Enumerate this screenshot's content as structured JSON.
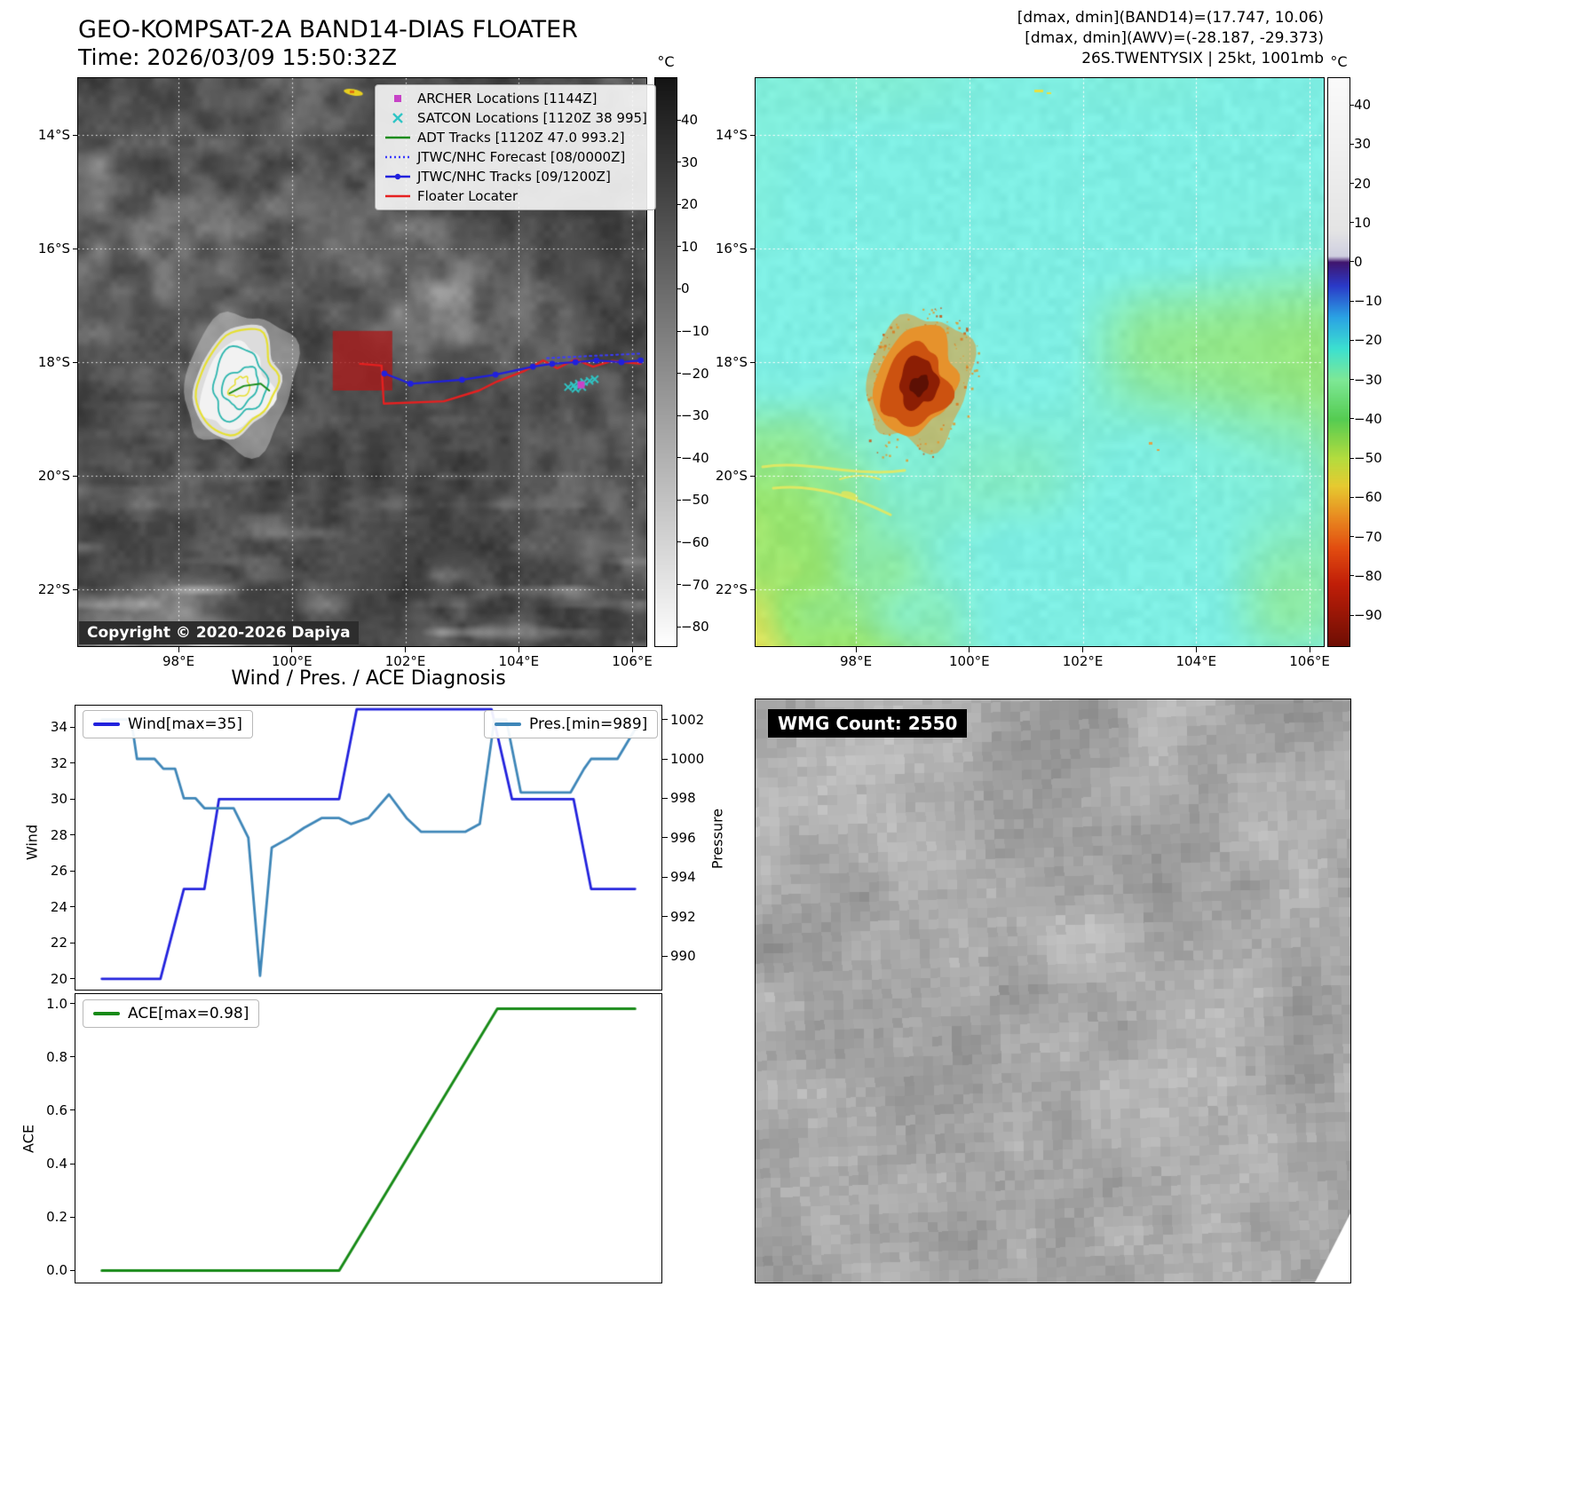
{
  "header_right": {
    "line1": "[dmax, dmin](BAND14)=(17.747, 10.06)",
    "line2": "[dmax, dmin](AWV)=(-28.187, -29.373)",
    "line3": "26S.TWENTYSIX | 25kt, 1001mb"
  },
  "geo": {
    "lon_range": [
      96.23,
      106.25
    ],
    "lat_range": [
      13,
      23
    ],
    "lat_ticks": [
      {
        "label": "14°S",
        "value": 14
      },
      {
        "label": "16°S",
        "value": 16
      },
      {
        "label": "18°S",
        "value": 18
      },
      {
        "label": "20°S",
        "value": 20
      },
      {
        "label": "22°S",
        "value": 22
      }
    ],
    "lon_ticks": [
      {
        "label": "98°E",
        "value": 98
      },
      {
        "label": "100°E",
        "value": 100
      },
      {
        "label": "102°E",
        "value": 102
      },
      {
        "label": "104°E",
        "value": 104
      },
      {
        "label": "106°E",
        "value": 106
      }
    ]
  },
  "ir_panel": {
    "title": "GEO-KOMPSAT-2A BAND14-DIAS FLOATER",
    "time_label": "Time: 2026/03/09 15:50:32Z",
    "copyright": "Copyright © 2020-2026 Dapiya",
    "colorbar": {
      "unit": "°C",
      "ticks": [
        40,
        30,
        20,
        10,
        0,
        -10,
        -20,
        -30,
        -40,
        -50,
        -60,
        -70,
        -80
      ]
    },
    "legend": [
      {
        "label": "ARCHER Locations [1144Z]",
        "marker": "square",
        "color": "#c743c7"
      },
      {
        "label": "SATCON Locations [1120Z 38 995]",
        "marker": "x",
        "color": "#2fc5c5"
      },
      {
        "label": "ADT Tracks [1120Z 47.0 993.2]",
        "marker": "line",
        "color": "#1a8c1a"
      },
      {
        "label": "JTWC/NHC Forecast [08/0000Z]",
        "marker": "dotted",
        "color": "#3b3bff"
      },
      {
        "label": "JTWC/NHC Tracks [09/1200Z]",
        "marker": "line-dot",
        "color": "#2020dd"
      },
      {
        "label": "Floater Locater",
        "marker": "line",
        "color": "#e62020"
      }
    ],
    "map": {
      "storm_center": [
        99.08,
        18.42
      ],
      "alert_box": {
        "lon": [
          100.72,
          101.77
        ],
        "lat": [
          17.45,
          18.5
        ],
        "color": "rgba(167,28,28,0.80)"
      },
      "floater_track": [
        [
          101.2,
          18.03
        ],
        [
          101.58,
          18.06
        ],
        [
          101.62,
          18.73
        ],
        [
          102.68,
          18.69
        ],
        [
          103.3,
          18.5
        ],
        [
          103.62,
          18.34
        ],
        [
          104.09,
          18.16
        ],
        [
          104.43,
          17.97
        ],
        [
          104.68,
          18.11
        ],
        [
          105.0,
          17.95
        ],
        [
          105.31,
          18.08
        ],
        [
          105.65,
          17.98
        ],
        [
          106.15,
          18.03
        ]
      ],
      "jtwc_track": [
        [
          101.63,
          18.2
        ],
        [
          102.09,
          18.38
        ],
        [
          103.0,
          18.31
        ],
        [
          103.59,
          18.22
        ],
        [
          104.25,
          18.08
        ],
        [
          104.59,
          18.03
        ],
        [
          105.0,
          18.0
        ],
        [
          105.37,
          17.97
        ],
        [
          105.81,
          18.0
        ],
        [
          106.15,
          17.97
        ]
      ],
      "forecast_track": [
        [
          104.5,
          17.93
        ],
        [
          105.3,
          17.89
        ],
        [
          106.15,
          17.85
        ]
      ],
      "adt_track": [
        [
          98.9,
          18.55
        ],
        [
          99.15,
          18.42
        ],
        [
          99.45,
          18.38
        ],
        [
          99.6,
          18.5
        ]
      ],
      "satcon_points": [
        [
          104.87,
          18.44
        ],
        [
          104.97,
          18.41
        ],
        [
          105.06,
          18.38
        ],
        [
          105.15,
          18.35
        ],
        [
          105.25,
          18.33
        ],
        [
          105.0,
          18.47
        ],
        [
          105.12,
          18.44
        ],
        [
          105.34,
          18.3
        ]
      ],
      "archer_point": [
        105.1,
        18.4
      ]
    }
  },
  "awv_panel": {
    "colorbar": {
      "unit": "°C",
      "ticks": [
        40,
        30,
        20,
        10,
        0,
        -10,
        -20,
        -30,
        -40,
        -50,
        -60,
        -70,
        -80,
        -90
      ]
    },
    "storm_center": [
      99.11,
      18.4
    ]
  },
  "diagnosis": {
    "title": "Wind / Pres. / ACE Diagnosis"
  },
  "chart_data": [
    {
      "type": "line",
      "panel": "wind-pressure",
      "title": "Wind / Pres. / ACE Diagnosis",
      "x_range": [
        0,
        1
      ],
      "left_axis": {
        "label": "Wind",
        "ticks": [
          20,
          22,
          24,
          26,
          28,
          30,
          32,
          34
        ],
        "lim": [
          19.4,
          35.2
        ]
      },
      "right_axis": {
        "label": "Pressure",
        "ticks": [
          990,
          992,
          994,
          996,
          998,
          1000,
          1002
        ],
        "lim": [
          988.3,
          1002.7
        ]
      },
      "series": [
        {
          "name": "Wind[max=35]",
          "axis": "left",
          "color": "#2222dd",
          "points": [
            [
              0.045,
              20
            ],
            [
              0.145,
              20
            ],
            [
              0.185,
              25
            ],
            [
              0.22,
              25
            ],
            [
              0.245,
              30
            ],
            [
              0.45,
              30
            ],
            [
              0.48,
              35
            ],
            [
              0.71,
              35
            ],
            [
              0.745,
              30
            ],
            [
              0.85,
              30
            ],
            [
              0.88,
              25
            ],
            [
              0.955,
              25
            ]
          ]
        },
        {
          "name": "Pres.[min=989]",
          "axis": "right",
          "color": "#3e86b8",
          "points": [
            [
              0.045,
              1002
            ],
            [
              0.095,
              1002
            ],
            [
              0.105,
              1000
            ],
            [
              0.135,
              1000
            ],
            [
              0.15,
              999.5
            ],
            [
              0.17,
              999.5
            ],
            [
              0.185,
              998
            ],
            [
              0.205,
              998
            ],
            [
              0.22,
              997.5
            ],
            [
              0.27,
              997.5
            ],
            [
              0.295,
              996
            ],
            [
              0.315,
              989
            ],
            [
              0.335,
              995.5
            ],
            [
              0.365,
              996
            ],
            [
              0.39,
              996.5
            ],
            [
              0.42,
              997
            ],
            [
              0.45,
              997
            ],
            [
              0.47,
              996.7
            ],
            [
              0.5,
              997
            ],
            [
              0.535,
              998.2
            ],
            [
              0.565,
              997
            ],
            [
              0.59,
              996.3
            ],
            [
              0.665,
              996.3
            ],
            [
              0.69,
              996.7
            ],
            [
              0.715,
              1002
            ],
            [
              0.735,
              1002
            ],
            [
              0.76,
              998.3
            ],
            [
              0.845,
              998.3
            ],
            [
              0.868,
              999.5
            ],
            [
              0.88,
              1000
            ],
            [
              0.925,
              1000
            ],
            [
              0.955,
              1001.5
            ]
          ]
        }
      ]
    },
    {
      "type": "line",
      "panel": "ace",
      "left_axis": {
        "label": "ACE",
        "ticks": [
          0,
          0.2,
          0.4,
          0.6,
          0.8,
          1.0
        ],
        "lim": [
          -0.045,
          1.035
        ]
      },
      "series": [
        {
          "name": "ACE[max=0.98]",
          "axis": "left",
          "color": "#178a17",
          "points": [
            [
              0.045,
              0
            ],
            [
              0.45,
              0
            ],
            [
              0.72,
              0.98
            ],
            [
              0.955,
              0.98
            ]
          ]
        }
      ]
    }
  ],
  "wmg_panel": {
    "label": "WMG Count: 2550"
  }
}
